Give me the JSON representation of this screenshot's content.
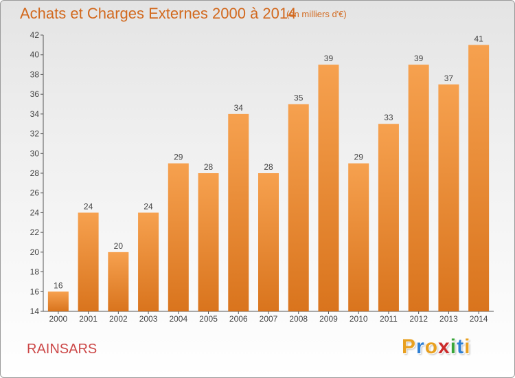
{
  "title": "Achats et Charges Externes 2000 à 2014",
  "subtitle": "(en milliers d'€)",
  "place": "RAINSARS",
  "logo": {
    "letters": [
      "P",
      "r",
      "o",
      "x",
      "i",
      "t",
      "i"
    ],
    "colors": [
      "#e8a020",
      "#2e7fd4",
      "#e8a020",
      "#cc2b2b",
      "#3aa63a",
      "#2e7fd4",
      "#e8a020"
    ]
  },
  "chart_data": {
    "type": "bar",
    "title": "Achats et Charges Externes 2000 à 2014",
    "subtitle": "(en milliers d'€)",
    "categories": [
      "2000",
      "2001",
      "2002",
      "2003",
      "2004",
      "2005",
      "2006",
      "2007",
      "2008",
      "2009",
      "2010",
      "2011",
      "2012",
      "2013",
      "2014"
    ],
    "values": [
      16,
      24,
      20,
      24,
      29,
      28,
      34,
      28,
      35,
      39,
      29,
      33,
      39,
      37,
      41
    ],
    "ylim": [
      14,
      42
    ],
    "yticks": [
      14,
      16,
      18,
      20,
      22,
      24,
      26,
      28,
      30,
      32,
      34,
      36,
      38,
      40,
      42
    ],
    "grid": false,
    "bar_color_top": "#f6a14f",
    "bar_color_bottom": "#d9741d"
  }
}
